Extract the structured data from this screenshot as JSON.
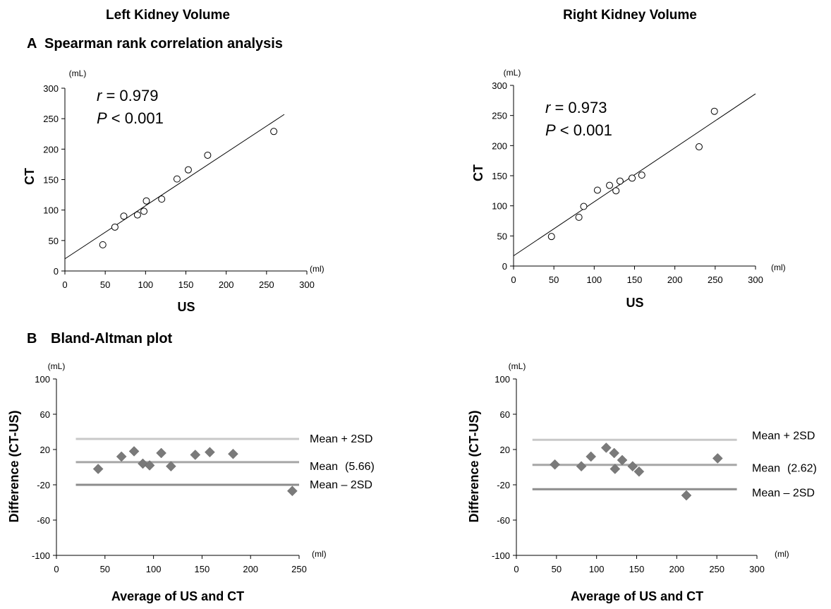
{
  "column_titles": {
    "left": "Left Kidney Volume",
    "right": "Right Kidney Volume"
  },
  "section_titles": {
    "a_letter": "A",
    "a_text": "Spearman rank correlation analysis",
    "b_letter": "B",
    "b_text": "Bland-Altman plot"
  },
  "colors": {
    "axis": "#000000",
    "marker_diamond": "#7a7a7a",
    "line_mean_plus": "#c8c8c8",
    "line_mean": "#a6a6a6",
    "line_mean_minus": "#8c8c8c"
  },
  "chart_data": [
    {
      "id": "scatter-left",
      "type": "scatter",
      "xlabel": "US",
      "ylabel": "CT",
      "x_unit": "(ml)",
      "y_unit": "(mL)",
      "xlim": [
        0,
        300
      ],
      "ylim": [
        0,
        300
      ],
      "xticks": [
        "0",
        "50",
        "100",
        "150",
        "200",
        "250",
        "300"
      ],
      "yticks": [
        "0",
        "50",
        "100",
        "150",
        "200",
        "250",
        "300"
      ],
      "annotation": {
        "r_sym": "r",
        "r_text": " = 0.979",
        "p_sym": "P",
        "p_text": " < 0.001"
      },
      "fit_line": {
        "x": [
          0,
          272
        ],
        "y": [
          20,
          257
        ]
      },
      "marker": "circle-open",
      "points": [
        {
          "x": 47,
          "y": 43
        },
        {
          "x": 62,
          "y": 72
        },
        {
          "x": 73,
          "y": 90
        },
        {
          "x": 90,
          "y": 92
        },
        {
          "x": 98,
          "y": 98
        },
        {
          "x": 101,
          "y": 115
        },
        {
          "x": 120,
          "y": 118
        },
        {
          "x": 139,
          "y": 151
        },
        {
          "x": 153,
          "y": 166
        },
        {
          "x": 177,
          "y": 190
        },
        {
          "x": 259,
          "y": 229
        }
      ]
    },
    {
      "id": "scatter-right",
      "type": "scatter",
      "xlabel": "US",
      "ylabel": "CT",
      "x_unit": "(ml)",
      "y_unit": "(mL)",
      "xlim": [
        0,
        300
      ],
      "ylim": [
        0,
        300
      ],
      "xticks": [
        "0",
        "50",
        "100",
        "150",
        "200",
        "250",
        "300"
      ],
      "yticks": [
        "0",
        "50",
        "100",
        "150",
        "200",
        "250",
        "300"
      ],
      "annotation": {
        "r_sym": "r",
        "r_text": " = 0.973",
        "p_sym": "P",
        "p_text": " < 0.001"
      },
      "fit_line": {
        "x": [
          0,
          300
        ],
        "y": [
          17,
          286
        ]
      },
      "marker": "circle-open",
      "points": [
        {
          "x": 47,
          "y": 49
        },
        {
          "x": 81,
          "y": 81
        },
        {
          "x": 87,
          "y": 99
        },
        {
          "x": 104,
          "y": 126
        },
        {
          "x": 119,
          "y": 134
        },
        {
          "x": 127,
          "y": 125
        },
        {
          "x": 132,
          "y": 141
        },
        {
          "x": 147,
          "y": 146
        },
        {
          "x": 159,
          "y": 151
        },
        {
          "x": 230,
          "y": 198
        },
        {
          "x": 249,
          "y": 257
        }
      ]
    },
    {
      "id": "bland-left",
      "type": "scatter",
      "xlabel": "Average of US and CT",
      "ylabel": "Difference  (CT-US)",
      "x_unit": "(ml)",
      "y_unit": "(mL)",
      "xlim": [
        0,
        250
      ],
      "ylim": [
        -100,
        100
      ],
      "xticks": [
        "0",
        "50",
        "100",
        "150",
        "200",
        "250"
      ],
      "yticks": [
        "-100",
        "-60",
        "-20",
        "20",
        "60",
        "100"
      ],
      "ytick_values": [
        -100,
        -60,
        -20,
        20,
        60,
        100
      ],
      "marker": "diamond-filled",
      "lines_x": [
        20,
        250
      ],
      "ref_lines": [
        {
          "key": "mean_plus",
          "value": 32,
          "label": "Mean + 2SD",
          "extra": ""
        },
        {
          "key": "mean",
          "value": 5.66,
          "label": "Mean",
          "extra": "(5.66)"
        },
        {
          "key": "mean_minus",
          "value": -20,
          "label": "Mean – 2SD",
          "extra": ""
        }
      ],
      "points": [
        {
          "x": 43,
          "y": -2
        },
        {
          "x": 67,
          "y": 12
        },
        {
          "x": 80,
          "y": 18
        },
        {
          "x": 89,
          "y": 4
        },
        {
          "x": 96,
          "y": 2
        },
        {
          "x": 108,
          "y": 16
        },
        {
          "x": 118,
          "y": 1
        },
        {
          "x": 143,
          "y": 14
        },
        {
          "x": 158,
          "y": 17
        },
        {
          "x": 182,
          "y": 15
        },
        {
          "x": 243,
          "y": -27
        }
      ]
    },
    {
      "id": "bland-right",
      "type": "scatter",
      "xlabel": "Average of US and CT",
      "ylabel": "Difference  (CT-US)",
      "x_unit": "(ml)",
      "y_unit": "(mL)",
      "xlim": [
        0,
        300
      ],
      "ylim": [
        -100,
        100
      ],
      "xticks": [
        "0",
        "50",
        "100",
        "150",
        "200",
        "250",
        "300"
      ],
      "yticks": [
        "-100",
        "-60",
        "-20",
        "20",
        "60",
        "100"
      ],
      "ytick_values": [
        -100,
        -60,
        -20,
        20,
        60,
        100
      ],
      "marker": "diamond-filled",
      "lines_x": [
        20,
        275
      ],
      "ref_lines": [
        {
          "key": "mean_plus",
          "value": 31,
          "label": "Mean + 2SD",
          "extra": ""
        },
        {
          "key": "mean",
          "value": 2.62,
          "label": "Mean",
          "extra": "(2.62)"
        },
        {
          "key": "mean_minus",
          "value": -25,
          "label": "Mean – 2SD",
          "extra": ""
        }
      ],
      "points": [
        {
          "x": 48,
          "y": 3
        },
        {
          "x": 81,
          "y": 1
        },
        {
          "x": 93,
          "y": 12
        },
        {
          "x": 112,
          "y": 22
        },
        {
          "x": 122,
          "y": 16
        },
        {
          "x": 123,
          "y": -2
        },
        {
          "x": 132,
          "y": 8
        },
        {
          "x": 145,
          "y": 1
        },
        {
          "x": 153,
          "y": -5
        },
        {
          "x": 212,
          "y": -32
        },
        {
          "x": 251,
          "y": 10
        }
      ]
    }
  ]
}
